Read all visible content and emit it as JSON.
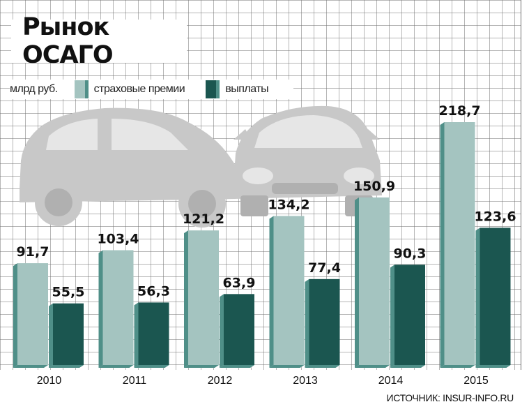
{
  "title": "Рынок ОСАГО",
  "legend": {
    "unit": "млрд руб.",
    "items": [
      {
        "label": "страховые премии",
        "color": "#a4c4c0"
      },
      {
        "label": "выплаты",
        "color": "#1b5650"
      }
    ]
  },
  "source": "ИСТОЧНИК: INSUR-INFO.RU",
  "chart_data": {
    "type": "bar",
    "categories": [
      "2010",
      "2011",
      "2012",
      "2013",
      "2014",
      "2015"
    ],
    "series": [
      {
        "name": "страховые премии",
        "values": [
          91.7,
          103.4,
          121.2,
          134.2,
          150.9,
          218.7
        ],
        "labels": [
          "91,7",
          "103,4",
          "121,2",
          "134,2",
          "150,9",
          "218,7"
        ],
        "color": "#a4c4c0",
        "side_color": "#4f8f88"
      },
      {
        "name": "выплаты",
        "values": [
          55.5,
          56.3,
          63.9,
          77.4,
          90.3,
          123.6
        ],
        "labels": [
          "55,5",
          "56,3",
          "63,9",
          "77,4",
          "90,3",
          "123,6"
        ],
        "color": "#1b5650",
        "side_color": "#4f8f88"
      }
    ],
    "ylim": [
      0,
      225
    ],
    "grid": true,
    "legend_position": "top-left"
  }
}
